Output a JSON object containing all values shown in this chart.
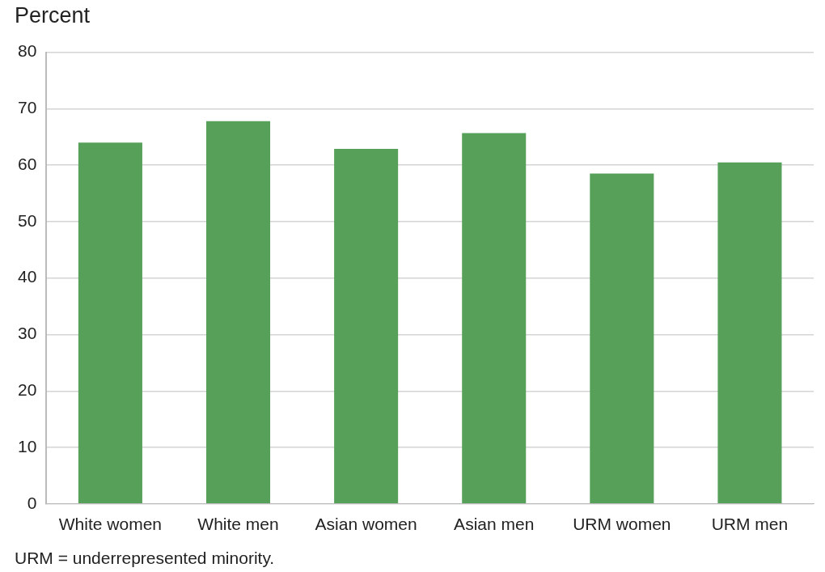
{
  "chart_data": {
    "type": "bar",
    "ylabel": "Percent",
    "categories": [
      "White women",
      "White men",
      "Asian women",
      "Asian men",
      "URM women",
      "URM men"
    ],
    "values": [
      64,
      67.8,
      62.9,
      65.7,
      58.5,
      60.5
    ],
    "color": "#57a05a",
    "ylim": [
      0,
      80
    ],
    "yticks": [
      0,
      10,
      20,
      30,
      40,
      50,
      60,
      70,
      80
    ],
    "grid": "y",
    "annotations": [
      "URM = underrepresented minority."
    ]
  }
}
